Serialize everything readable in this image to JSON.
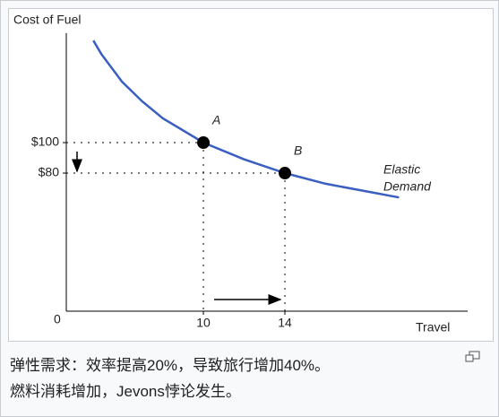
{
  "chart_data": {
    "type": "line",
    "y_label": "Cost of Fuel",
    "x_label": "Travel",
    "origin_label": "0",
    "xlim": [
      3.27,
      22.97
    ],
    "ylim": [
      -10.6,
      171.8
    ],
    "xticks": [
      10,
      14
    ],
    "yticks": [
      {
        "value": 100,
        "label": "$100"
      },
      {
        "value": 80,
        "label": "$80"
      }
    ],
    "series": [
      {
        "name": "Elastic Demand",
        "color": "#3b5fc0",
        "x": [
          4.6,
          5,
          6,
          7,
          8,
          10,
          12,
          14,
          16,
          18,
          19.6
        ],
        "values": [
          167,
          158,
          140,
          127,
          116,
          100,
          89,
          80,
          73,
          68,
          64
        ]
      }
    ],
    "curve_label": [
      "Elastic",
      "Demand"
    ],
    "points": [
      {
        "label": "A",
        "x": 10,
        "y": 100
      },
      {
        "label": "B",
        "x": 14,
        "y": 80
      }
    ],
    "caption": [
      "弹性需求：效率提高20%，导致旅行增加40%。",
      "燃料消耗增加，Jevons悖论发生。"
    ]
  }
}
